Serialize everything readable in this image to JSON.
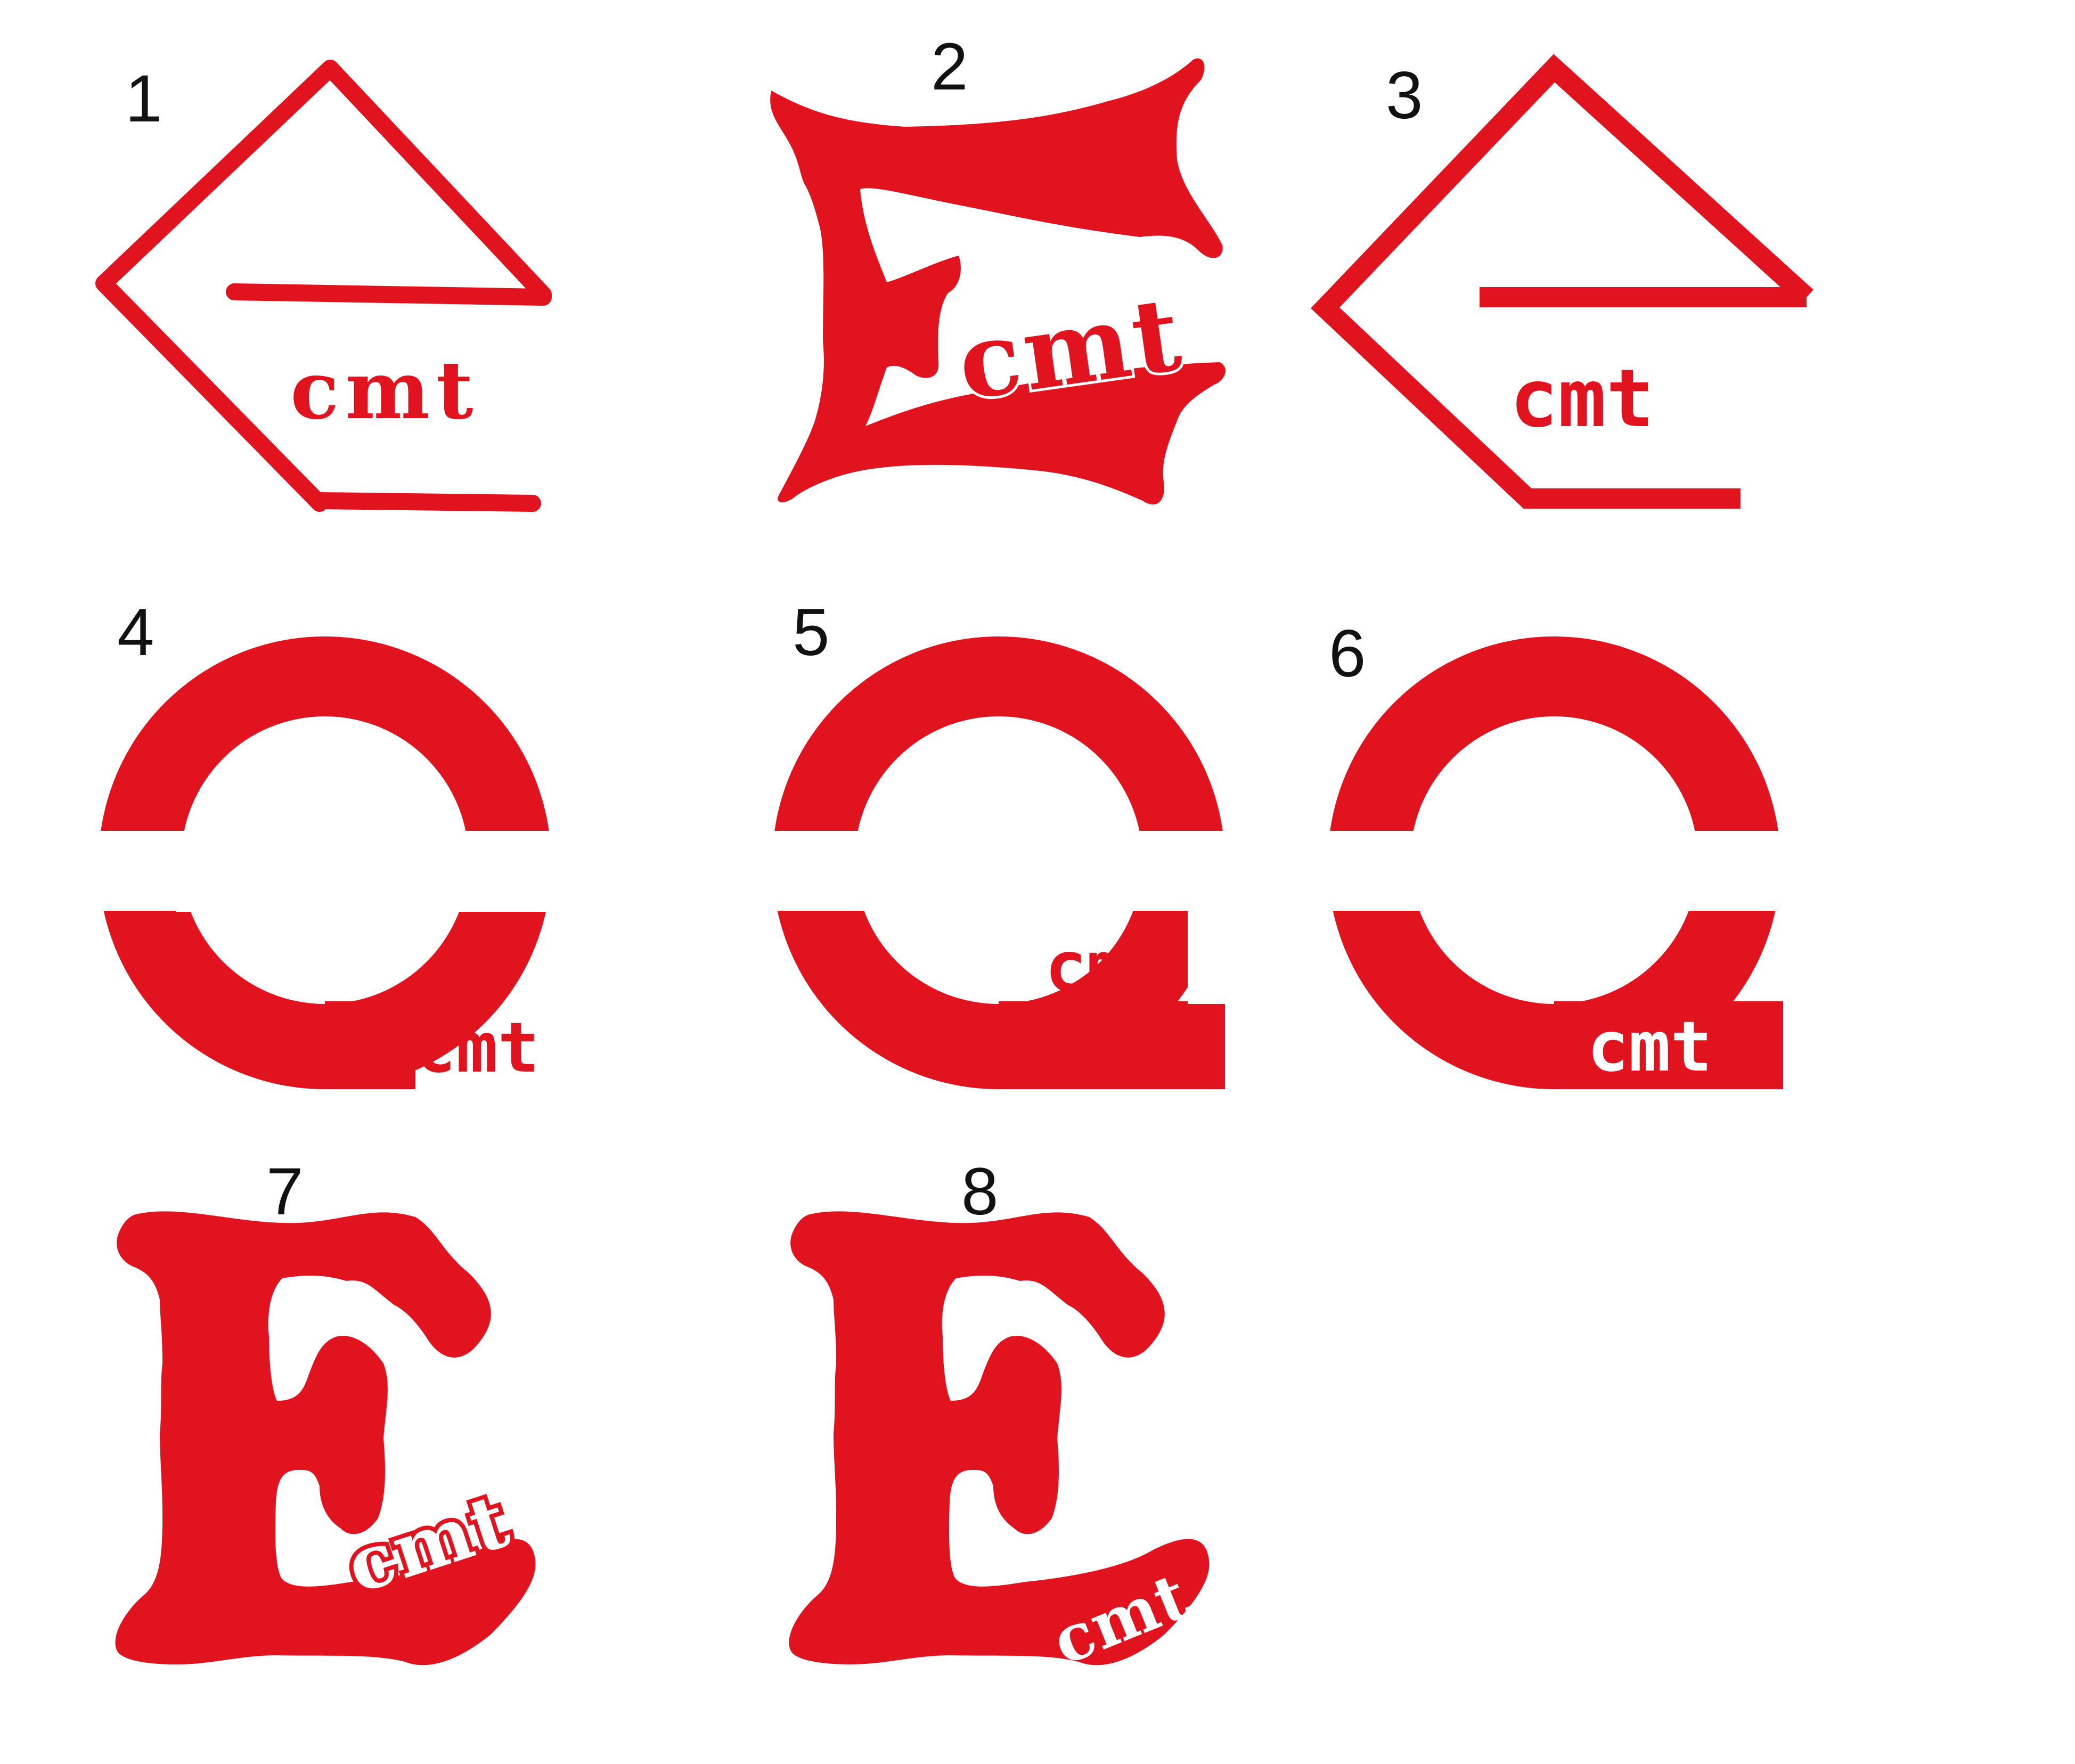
{
  "brand_color": "#e0131f",
  "background_color": "#ffffff",
  "concepts": [
    {
      "number": "1",
      "wordmark": "cmt",
      "style": "hand-drawn outline triangle-e"
    },
    {
      "number": "2",
      "wordmark": "cmt",
      "style": "distressed block E"
    },
    {
      "number": "3",
      "wordmark": "cmt",
      "style": "outline triangle-e"
    },
    {
      "number": "4",
      "wordmark": "cmt",
      "style": "lowercase e, wordmark outside tail"
    },
    {
      "number": "5",
      "wordmark": "cmt",
      "style": "lowercase e, wordmark above tail"
    },
    {
      "number": "6",
      "wordmark": "cmt",
      "style": "lowercase e, wordmark knocked out in tail"
    },
    {
      "number": "7",
      "wordmark": "cmt",
      "style": "cartoon E, arched wordmark"
    },
    {
      "number": "8",
      "wordmark": "cmt",
      "style": "cartoon E, wordmark knocked out in foot"
    }
  ]
}
